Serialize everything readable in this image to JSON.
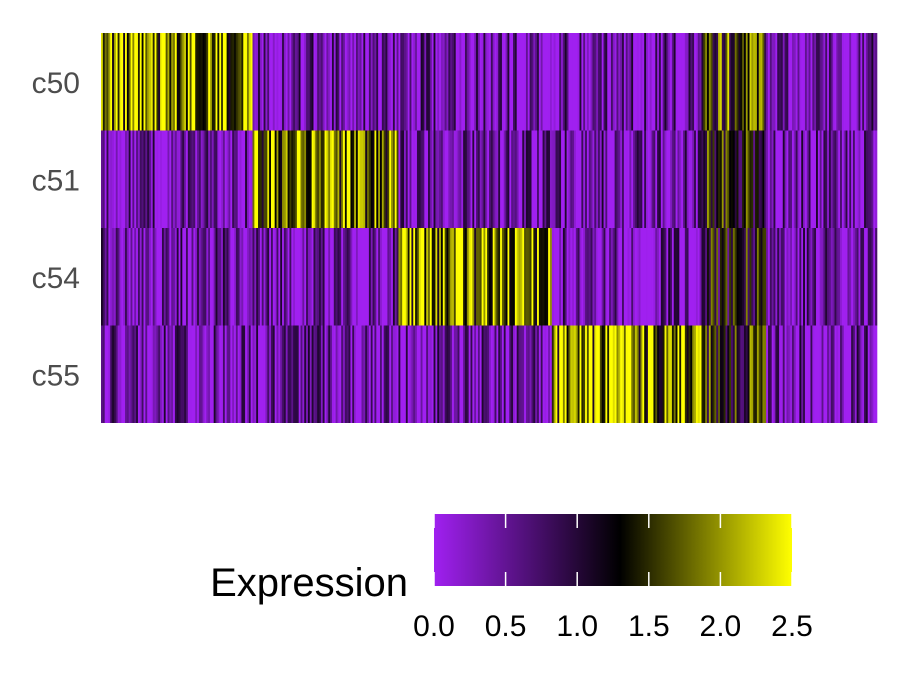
{
  "chart_data": {
    "type": "heatmap",
    "rows": [
      "c50",
      "c51",
      "c54",
      "c55"
    ],
    "cluster_blocks": [
      {
        "high_row": "c50",
        "x_start": 0.0,
        "x_end": 0.195
      },
      {
        "high_row": "c51",
        "x_start": 0.195,
        "x_end": 0.383
      },
      {
        "high_row": "c54",
        "x_start": 0.383,
        "x_end": 0.582
      },
      {
        "high_row": "c55",
        "x_start": 0.582,
        "x_end": 0.776
      },
      {
        "high_row": "mixed",
        "x_start": 0.776,
        "x_end": 0.858
      },
      {
        "high_row": "none",
        "x_start": 0.858,
        "x_end": 1.0
      }
    ],
    "mixed_block_levels": {
      "c50": 1.6,
      "c51": 1.3,
      "c54": 1.2,
      "c55": 1.4
    },
    "high_level": 2.1,
    "low_level": 0.3,
    "legend": {
      "title": "Expression",
      "min": 0.0,
      "max": 2.5,
      "ticks": [
        "0.0",
        "0.5",
        "1.0",
        "1.5",
        "2.0",
        "2.5"
      ],
      "colors": [
        "#a020f0",
        "#000000",
        "#ffff00"
      ],
      "placement": "bottom"
    },
    "xlabel": "",
    "ylabel": "",
    "title": ""
  }
}
